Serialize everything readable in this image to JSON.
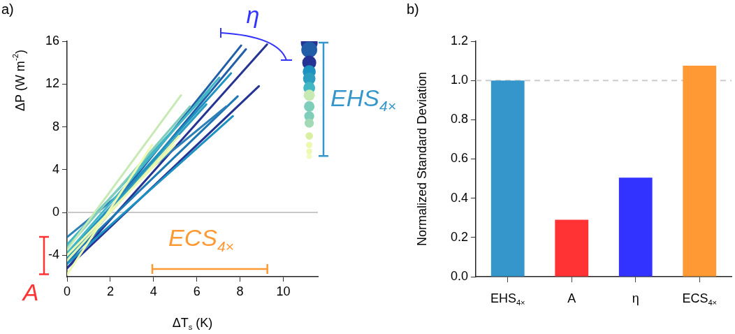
{
  "chart_data": [
    {
      "type": "line",
      "title": "a)",
      "xlabel": "ΔT$_{s}$ (K)",
      "ylabel": "ΔP (W m$^{-2}$)",
      "xlim": [
        0,
        11.6
      ],
      "xticks": [
        0,
        2,
        4,
        6,
        8,
        10
      ],
      "ylim": [
        -6,
        16
      ],
      "yticks": [
        -4,
        0,
        4,
        8,
        12,
        16
      ],
      "grid": false,
      "legend": false,
      "line_style": "solid",
      "series": [
        {
          "color": "#253494",
          "x": [
            0,
            9.25
          ],
          "values": [
            -5.2,
            15.7
          ]
        },
        {
          "color": "#225ea8",
          "x": [
            0,
            8.05
          ],
          "values": [
            -4.6,
            15.6
          ]
        },
        {
          "color": "#225ea8",
          "x": [
            0,
            8.27
          ],
          "values": [
            -4.8,
            15.25
          ]
        },
        {
          "color": "#253494",
          "x": [
            0,
            8.87
          ],
          "values": [
            -5.2,
            11.8
          ]
        },
        {
          "color": "#1d78b4",
          "x": [
            0,
            7.89
          ],
          "values": [
            -4.5,
            10.85
          ]
        },
        {
          "color": "#1d91c0",
          "x": [
            0,
            7.67
          ],
          "values": [
            -4.8,
            9.0
          ]
        },
        {
          "color": "#1d91c0",
          "x": [
            0,
            7.58
          ],
          "values": [
            -4.0,
            13.0
          ]
        },
        {
          "color": "#2c7fb8",
          "x": [
            0,
            7.36
          ],
          "values": [
            -2.3,
            9.9
          ]
        },
        {
          "color": "#41b6c4",
          "x": [
            0,
            7.04
          ],
          "values": [
            -3.8,
            12.6
          ]
        },
        {
          "color": "#41b6c4",
          "x": [
            0,
            6.6
          ],
          "values": [
            -3.0,
            11.4
          ]
        },
        {
          "color": "#2c9fc0",
          "x": [
            0,
            6.44
          ],
          "values": [
            -4.2,
            10.1
          ]
        },
        {
          "color": "#7fcdbb",
          "x": [
            0,
            5.68
          ],
          "values": [
            -3.3,
            9.9
          ]
        },
        {
          "color": "#c7e9b4",
          "x": [
            0,
            5.27
          ],
          "values": [
            -3.5,
            10.95
          ]
        },
        {
          "color": "#e3f4b0",
          "x": [
            0,
            5.18
          ],
          "values": [
            -4.5,
            7.15
          ]
        },
        {
          "color": "#edf8b1",
          "x": [
            0,
            4.97
          ],
          "values": [
            -4.0,
            6.3
          ]
        },
        {
          "color": "#edf8b1",
          "x": [
            0,
            3.93
          ],
          "values": [
            -5.8,
            6.3
          ]
        },
        {
          "type": "bubble",
          "x": [
            11.2,
            11.2,
            11.2,
            11.2,
            11.2,
            11.2,
            11.2,
            11.2,
            11.2,
            11.2,
            11.2,
            11.2,
            11.2,
            11.2
          ],
          "values": [
            15.85,
            15.2,
            14.0,
            13.15,
            12.5,
            11.65,
            10.95,
            9.9,
            9.0,
            8.35,
            7.15,
            6.3,
            5.7,
            5.25
          ],
          "sizes": [
            1,
            0.9,
            0.7,
            0.6,
            0.55,
            0.5,
            0.45,
            0.4,
            0.35,
            0.3,
            0.2,
            0.15,
            0.12,
            0.1
          ],
          "colors": [
            "#253494",
            "#225ea8",
            "#253494",
            "#1d91c0",
            "#2c9fc0",
            "#41b6c4",
            "#c7e9b4",
            "#7fcdbb",
            "#7fcdbb",
            "#a1dab4",
            "#d9f0a3",
            "#edf8b1",
            "#edf8b1",
            "#f3fac0"
          ]
        }
      ],
      "ref_lines": [
        {
          "axis": "y",
          "value": 0,
          "color": "#c8c8c8"
        }
      ],
      "annotations": [
        "A",
        "ECS$_{4×}$",
        "EHS$_{4×}$",
        "η"
      ]
    },
    {
      "type": "bar",
      "title": "b)",
      "ylabel": "Normalized Standard Deviation",
      "categories": [
        "EHS$_{4×}$",
        "A",
        "η",
        "ECS$_{4×}$"
      ],
      "values": [
        1.0,
        0.29,
        0.505,
        1.075
      ],
      "colors": [
        "#3596cb",
        "#ff3333",
        "#3333ff",
        "#ff9933"
      ],
      "ylim": [
        0,
        1.2
      ],
      "yticks": [
        {
          "value": 0,
          "label": "0.0"
        },
        {
          "value": 0.2,
          "label": "0.2"
        },
        {
          "value": 0.4,
          "label": "0.4"
        },
        {
          "value": 0.6,
          "label": "0.6"
        },
        {
          "value": 0.8,
          "label": "0.8"
        },
        {
          "value": 1.0,
          "label": "1.0"
        },
        {
          "value": 1.2,
          "label": "1.2"
        }
      ],
      "grid": false,
      "legend": false,
      "ref_lines": [
        {
          "axis": "y",
          "value": 1.0,
          "color": "#cccccc",
          "line_style": "dashed"
        }
      ]
    }
  ]
}
